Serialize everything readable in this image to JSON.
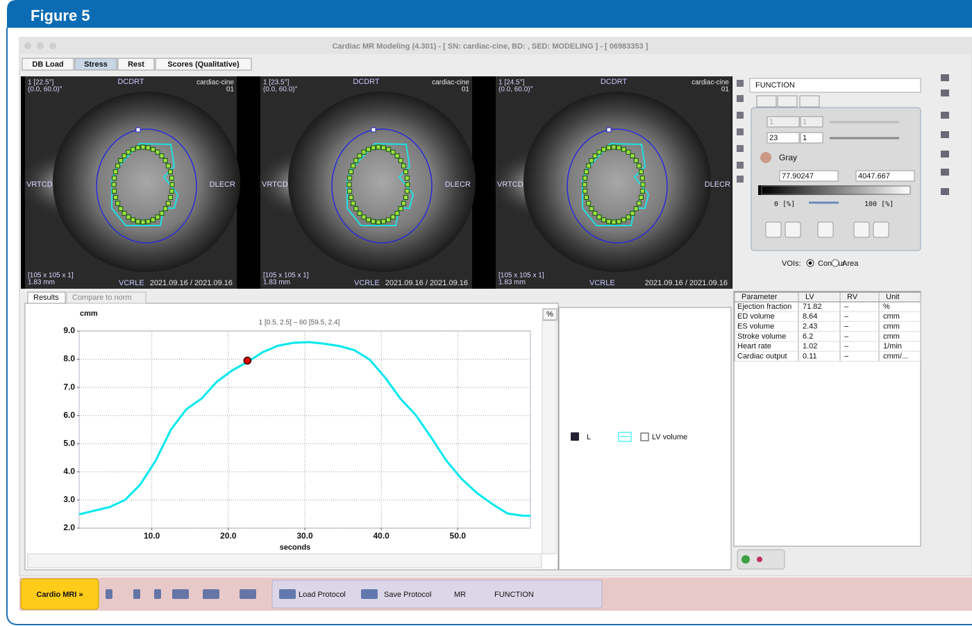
{
  "figure_label": "Figure 5",
  "window_title": "Cardiac MR Modeling (4.301) - [ SN: cardiac-cine, BD: , SED: MODELING ] - [ 06983353 ]",
  "tabs": [
    "DB Load",
    "Stress",
    "Rest",
    "Scores (Qualitative)"
  ],
  "viewports": [
    {
      "angle": "1 [22.5°]",
      "position": "(0.0, 60.0)°",
      "top": "DCDRT",
      "series": "cardiac-cine",
      "number": "01",
      "left": "VRTCD",
      "right": "DLECR",
      "matrix": "[105 x 105 x 1]",
      "pixel": "1.83 mm",
      "bottom": "VCRLE",
      "dates": "2021.09.16 / 2021.09.16"
    },
    {
      "angle": "1 [23.5°]",
      "position": "(0.0, 60.0)°",
      "top": "DCDRT",
      "series": "cardiac-cine",
      "number": "01",
      "left": "VRTCD",
      "right": "DLECR",
      "matrix": "[105 x 105 x 1]",
      "pixel": "1.83 mm",
      "bottom": "VCRLE",
      "dates": "2021.09.16 / 2021.09.16"
    },
    {
      "angle": "1 [24.5°]",
      "position": "(0.0, 60.0)°",
      "top": "DCDRT",
      "series": "cardiac-cine",
      "number": "01",
      "left": "VRTCD",
      "right": "DLECR",
      "matrix": "[105 x 105 x 1]",
      "pixel": "1.83 mm",
      "bottom": "VCRLE",
      "dates": "2021.09.16 / 2021.09.16"
    }
  ],
  "controls": {
    "function": "FUNCTION",
    "frame_fields": [
      "1",
      "1"
    ],
    "slice_fields": [
      "23",
      "1"
    ],
    "colormap": "Gray",
    "lower": "77.90247",
    "upper": "4047.667",
    "min_pct": "0 [%]",
    "max_pct": "100 [%]",
    "vois_label": "VOIs:",
    "vois_options": [
      "Contour",
      "Area"
    ]
  },
  "result_tabs": [
    "Results",
    "Compare to norm"
  ],
  "percent_button": "%",
  "chart_data": {
    "type": "line",
    "y_label": "cmm",
    "x_label": "seconds",
    "annotation": "1 [0.5, 2.5] – 60 [59.5, 2.4]",
    "x": [
      0.5,
      2.5,
      4.5,
      6.5,
      8.5,
      10.5,
      12.5,
      14.5,
      16.5,
      18.5,
      20.5,
      22.5,
      24.5,
      26.5,
      28.5,
      30.5,
      32.5,
      34.5,
      36.5,
      38.5,
      40.5,
      42.5,
      44.5,
      46.5,
      48.5,
      50.5,
      52.5,
      54.5,
      56.5,
      58.5,
      59.5
    ],
    "series": [
      {
        "name": "LV volume",
        "color": "#00e8f0",
        "values": [
          2.49,
          2.62,
          2.75,
          3.0,
          3.55,
          4.4,
          5.5,
          6.22,
          6.6,
          7.2,
          7.6,
          7.9,
          8.25,
          8.48,
          8.58,
          8.61,
          8.55,
          8.47,
          8.32,
          7.98,
          7.35,
          6.6,
          6.02,
          5.23,
          4.4,
          3.75,
          3.25,
          2.86,
          2.52,
          2.44,
          2.44
        ]
      }
    ],
    "legend_key": "L",
    "marker": {
      "x": 22.5,
      "y": 7.95,
      "color": "#e00000"
    },
    "xlim": [
      0.5,
      59.5
    ],
    "ylim": [
      2,
      9
    ],
    "xticks": [
      {
        "value": 10,
        "label": "10.0"
      },
      {
        "value": 20,
        "label": "20.0"
      },
      {
        "value": 30,
        "label": "30.0"
      },
      {
        "value": 40,
        "label": "40.0"
      },
      {
        "value": 50,
        "label": "50.0"
      }
    ],
    "yticks": [
      {
        "value": 2,
        "label": "2.0"
      },
      {
        "value": 3,
        "label": "3.0"
      },
      {
        "value": 4,
        "label": "4.0"
      },
      {
        "value": 5,
        "label": "5.0"
      },
      {
        "value": 6,
        "label": "6.0"
      },
      {
        "value": 7,
        "label": "7.0"
      },
      {
        "value": 8,
        "label": "8.0"
      },
      {
        "value": 9,
        "label": "9.0"
      }
    ],
    "grid": true
  },
  "table": {
    "header": [
      "Parameter",
      "LV",
      "RV",
      "Unit"
    ],
    "rows": [
      [
        "Ejection fraction",
        "71.82",
        "–",
        "%"
      ],
      [
        "ED volume",
        "8.64",
        "–",
        "cmm"
      ],
      [
        "ES volume",
        "2.43",
        "–",
        "cmm"
      ],
      [
        "Stroke volume",
        "6.2",
        "–",
        "cmm"
      ],
      [
        "Heart rate",
        "1.02",
        "–",
        "1/min"
      ],
      [
        "Cardiac output",
        "0.11",
        "–",
        "cmm/..."
      ]
    ]
  },
  "toolbar": {
    "app": "Cardio MRI »",
    "load": "Load Protocol",
    "save": "Save Protocol",
    "modality": "MR",
    "mode": "FUNCTION"
  }
}
